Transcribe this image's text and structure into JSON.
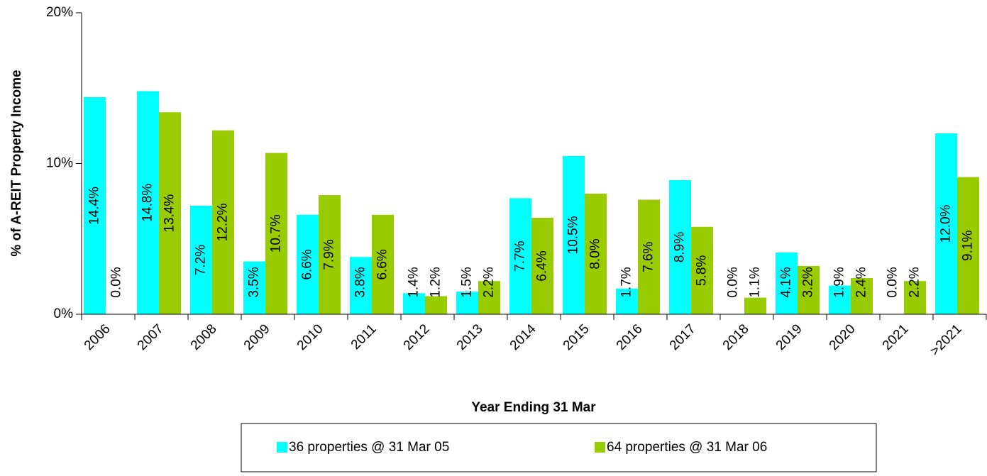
{
  "chart_data": {
    "type": "bar",
    "x_label": "Year Ending 31 Mar",
    "y_label": "% of A-REIT Property Income",
    "categories": [
      "2006",
      "2007",
      "2008",
      "2009",
      "2010",
      "2011",
      "2012",
      "2013",
      "2014",
      "2015",
      "2016",
      "2017",
      "2018",
      "2019",
      "2020",
      "2021",
      ">2021"
    ],
    "series": [
      {
        "name": "36 properties @ 31 Mar 05",
        "color": "#00ffff",
        "values": [
          14.4,
          14.8,
          7.2,
          3.5,
          6.6,
          3.8,
          1.4,
          1.5,
          7.7,
          10.5,
          1.7,
          8.9,
          0.0,
          4.1,
          1.9,
          0.0,
          12.0
        ],
        "value_labels": [
          "14.4%",
          "14.8%",
          "7.2%",
          "3.5%",
          "6.6%",
          "3.8%",
          "1.4%",
          "1.5%",
          "7.7%",
          "10.5%",
          "1.7%",
          "8.9%",
          "0.0%",
          "4.1%",
          "1.9%",
          "0.0%",
          "12.0%"
        ]
      },
      {
        "name": "64 properties @ 31 Mar 06",
        "color": "#99cc00",
        "values": [
          0.0,
          13.4,
          12.2,
          10.7,
          7.9,
          6.6,
          1.2,
          2.2,
          6.4,
          8.0,
          7.6,
          5.8,
          1.1,
          3.2,
          2.4,
          2.2,
          9.1
        ],
        "value_labels": [
          "0.0%",
          "13.4%",
          "12.2%",
          "10.7%",
          "7.9%",
          "6.6%",
          "1.2%",
          "2.2%",
          "6.4%",
          "8.0%",
          "7.6%",
          "5.8%",
          "1.1%",
          "3.2%",
          "2.4%",
          "2.2%",
          "9.1%"
        ]
      }
    ],
    "ylim": [
      0,
      20
    ],
    "yticks": [
      {
        "value": 0,
        "label": "0%"
      },
      {
        "value": 10,
        "label": "10%"
      },
      {
        "value": 20,
        "label": "20%"
      }
    ],
    "grid": false
  }
}
